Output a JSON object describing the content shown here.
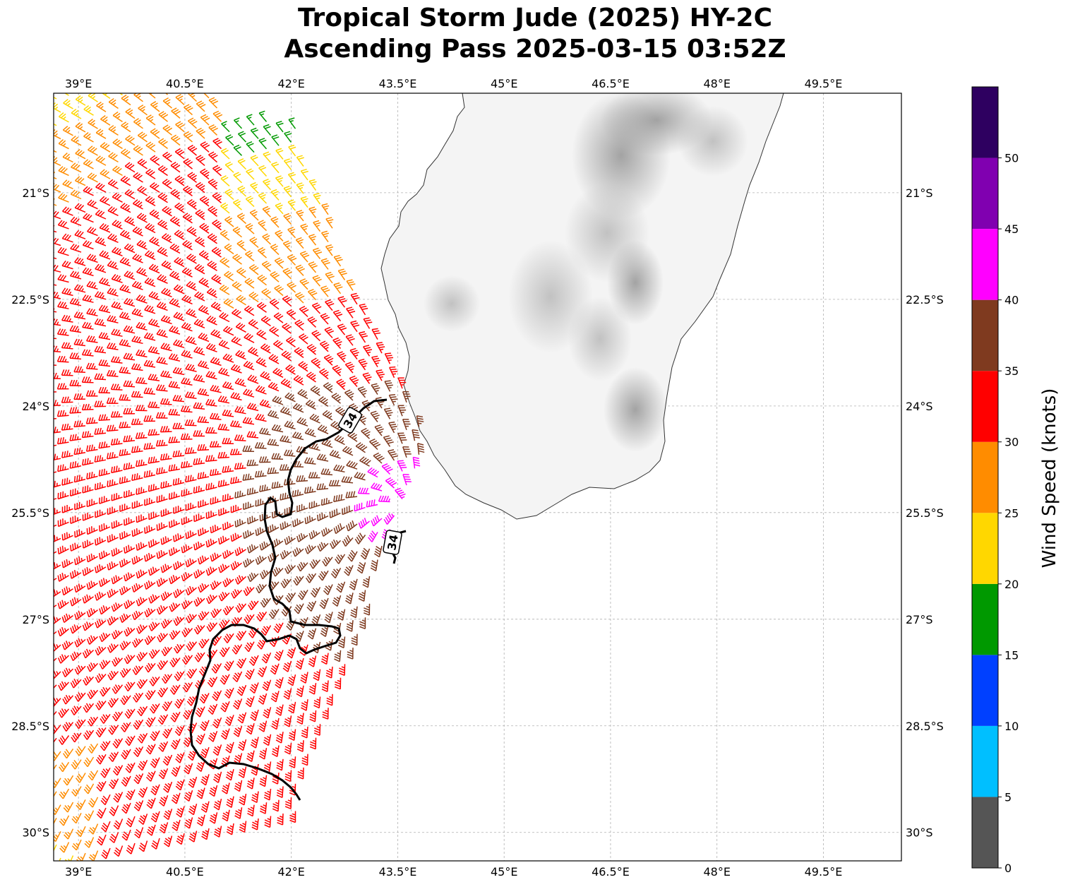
{
  "title": {
    "line1": "Tropical Storm Jude (2025) HY-2C",
    "line2": "Ascending Pass 2025-03-15 03:52Z"
  },
  "map": {
    "lon_range": [
      38.65,
      50.6
    ],
    "lat_range": [
      -30.4,
      -19.6
    ],
    "lon_ticks": [
      {
        "value": 39.0,
        "label": "39°E"
      },
      {
        "value": 40.5,
        "label": "40.5°E"
      },
      {
        "value": 42.0,
        "label": "42°E"
      },
      {
        "value": 43.5,
        "label": "43.5°E"
      },
      {
        "value": 45.0,
        "label": "45°E"
      },
      {
        "value": 46.5,
        "label": "46.5°E"
      },
      {
        "value": 48.0,
        "label": "48°E"
      },
      {
        "value": 49.5,
        "label": "49.5°E"
      }
    ],
    "lat_ticks": [
      {
        "value": -21.0,
        "label": "21°S"
      },
      {
        "value": -22.5,
        "label": "22.5°S"
      },
      {
        "value": -24.0,
        "label": "24°S"
      },
      {
        "value": -25.5,
        "label": "25.5°S"
      },
      {
        "value": -27.0,
        "label": "27°S"
      },
      {
        "value": -28.5,
        "label": "28.5°S"
      },
      {
        "value": -30.0,
        "label": "30°S"
      }
    ],
    "gridlines": true,
    "contour_label": "34",
    "contour_value_kt": 34
  },
  "colorbar": {
    "label": "Wind Speed (knots)",
    "bins": [
      {
        "min": 0,
        "max": 5,
        "color": "#555555"
      },
      {
        "min": 5,
        "max": 10,
        "color": "#00bfff"
      },
      {
        "min": 10,
        "max": 15,
        "color": "#0040ff"
      },
      {
        "min": 15,
        "max": 20,
        "color": "#009900"
      },
      {
        "min": 20,
        "max": 25,
        "color": "#ffd700"
      },
      {
        "min": 25,
        "max": 30,
        "color": "#ff8c00"
      },
      {
        "min": 30,
        "max": 35,
        "color": "#ff0000"
      },
      {
        "min": 35,
        "max": 40,
        "color": "#7f3a1f"
      },
      {
        "min": 40,
        "max": 45,
        "color": "#ff00ff"
      },
      {
        "min": 45,
        "max": 50,
        "color": "#8000b0"
      },
      {
        "min": 50,
        "max": 55,
        "color": "#2e0060"
      }
    ],
    "ticks": [
      "0",
      "5",
      "10",
      "15",
      "20",
      "25",
      "30",
      "35",
      "40",
      "45",
      "50"
    ]
  }
}
